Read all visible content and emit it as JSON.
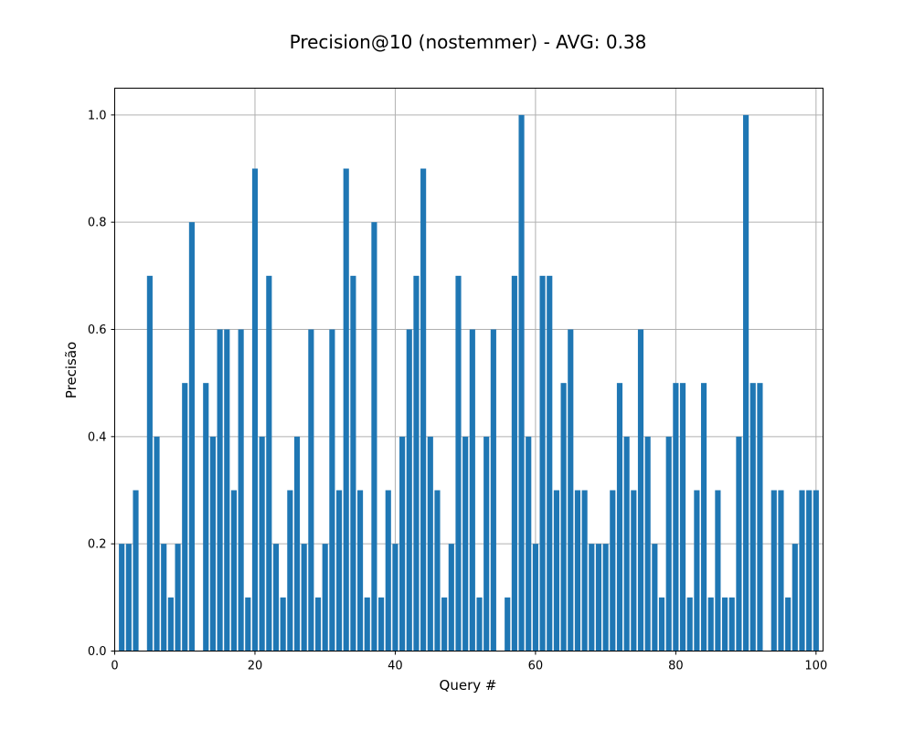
{
  "chart_data": {
    "type": "bar",
    "title": "Precision@10 (nostemmer) - AVG: 0.38",
    "xlabel": "Query #",
    "ylabel": "Precisão",
    "xlim": [
      0,
      101
    ],
    "ylim": [
      0,
      1.05
    ],
    "xticks": [
      0,
      20,
      40,
      60,
      80,
      100
    ],
    "yticks": [
      0.0,
      0.2,
      0.4,
      0.6,
      0.8,
      1.0
    ],
    "xtick_labels": [
      "0",
      "20",
      "40",
      "60",
      "80",
      "100"
    ],
    "ytick_labels": [
      "0.0",
      "0.2",
      "0.4",
      "0.6",
      "0.8",
      "1.0"
    ],
    "grid": true,
    "bar_color": "#1f77b4",
    "x": [
      1,
      2,
      3,
      4,
      5,
      6,
      7,
      8,
      9,
      10,
      11,
      12,
      13,
      14,
      15,
      16,
      17,
      18,
      19,
      20,
      21,
      22,
      23,
      24,
      25,
      26,
      27,
      28,
      29,
      30,
      31,
      32,
      33,
      34,
      35,
      36,
      37,
      38,
      39,
      40,
      41,
      42,
      43,
      44,
      45,
      46,
      47,
      48,
      49,
      50,
      51,
      52,
      53,
      54,
      55,
      56,
      57,
      58,
      59,
      60,
      61,
      62,
      63,
      64,
      65,
      66,
      67,
      68,
      69,
      70,
      71,
      72,
      73,
      74,
      75,
      76,
      77,
      78,
      79,
      80,
      81,
      82,
      83,
      84,
      85,
      86,
      87,
      88,
      89,
      90,
      91,
      92,
      93,
      94,
      95,
      96,
      97,
      98,
      99,
      100
    ],
    "values": [
      0.2,
      0.2,
      0.3,
      0.0,
      0.7,
      0.4,
      0.2,
      0.1,
      0.2,
      0.5,
      0.8,
      0.0,
      0.5,
      0.4,
      0.6,
      0.6,
      0.3,
      0.6,
      0.1,
      0.9,
      0.4,
      0.7,
      0.2,
      0.1,
      0.3,
      0.4,
      0.2,
      0.6,
      0.1,
      0.2,
      0.6,
      0.3,
      0.9,
      0.7,
      0.3,
      0.1,
      0.8,
      0.1,
      0.3,
      0.2,
      0.4,
      0.6,
      0.7,
      0.9,
      0.4,
      0.3,
      0.1,
      0.2,
      0.7,
      0.4,
      0.6,
      0.1,
      0.4,
      0.6,
      0.0,
      0.1,
      0.7,
      1.0,
      0.4,
      0.2,
      0.7,
      0.7,
      0.3,
      0.5,
      0.6,
      0.3,
      0.3,
      0.2,
      0.2,
      0.2,
      0.3,
      0.5,
      0.4,
      0.3,
      0.6,
      0.4,
      0.2,
      0.1,
      0.4,
      0.5,
      0.5,
      0.1,
      0.3,
      0.5,
      0.1,
      0.3,
      0.1,
      0.1,
      0.4,
      1.0,
      0.5,
      0.5,
      0.0,
      0.3,
      0.3,
      0.1,
      0.2,
      0.3,
      0.3,
      0.3
    ]
  }
}
